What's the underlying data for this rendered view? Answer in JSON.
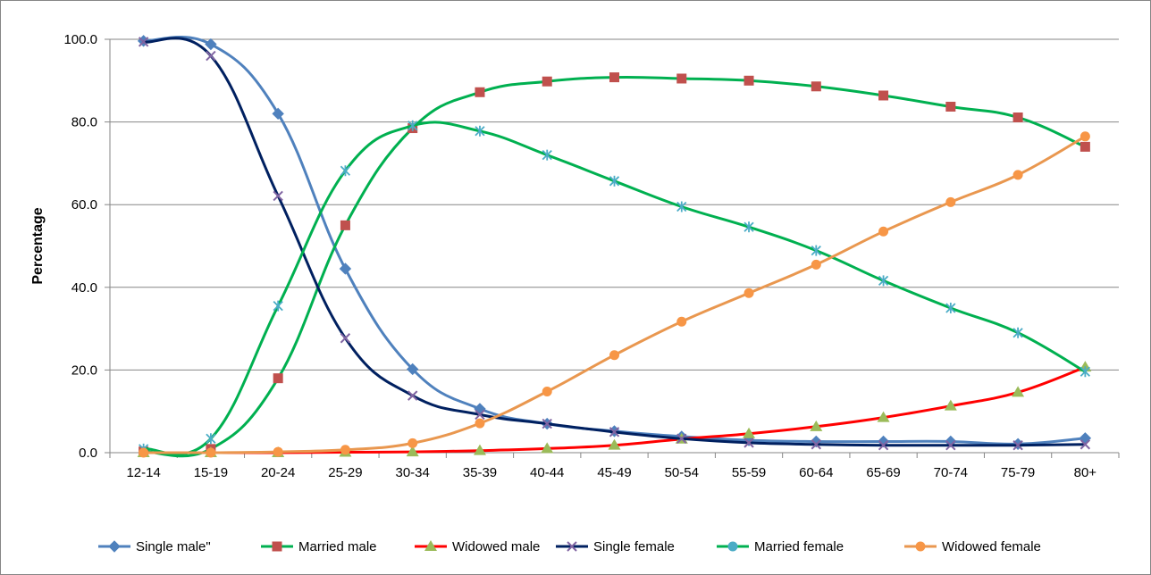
{
  "chart_data": {
    "type": "line",
    "title": "",
    "xlabel": "",
    "ylabel": "Percentage",
    "ylim": [
      0,
      100
    ],
    "yticks": [
      "0.0",
      "20.0",
      "40.0",
      "60.0",
      "80.0",
      "100.0"
    ],
    "grid": "horizontal",
    "legend_position": "bottom",
    "categories": [
      "12-14",
      "15-19",
      "20-24",
      "25-29",
      "30-34",
      "35-39",
      "40-44",
      "45-49",
      "50-54",
      "55-59",
      "60-64",
      "65-69",
      "70-74",
      "75-79",
      "80+"
    ],
    "series": [
      {
        "name": "Single male\"",
        "color": "#4F81BD",
        "marker": "diamond",
        "values": [
          99.6,
          98.8,
          82.0,
          44.5,
          20.2,
          10.6,
          7.0,
          5.2,
          3.9,
          3.0,
          2.7,
          2.7,
          2.7,
          2.1,
          3.5
        ]
      },
      {
        "name": "Married male",
        "color": "#00B050",
        "marker": "square",
        "marker_color": "#C0504D",
        "values": [
          0.3,
          0.9,
          18.0,
          55.0,
          78.5,
          87.2,
          89.8,
          90.8,
          90.5,
          90.0,
          88.6,
          86.4,
          83.7,
          81.1,
          74.0
        ]
      },
      {
        "name": "Widowed male",
        "color": "#FF0000",
        "marker": "triangle",
        "marker_color": "#9BBB59",
        "values": [
          0.0,
          0.0,
          0.0,
          0.1,
          0.2,
          0.5,
          1.0,
          1.8,
          3.3,
          4.6,
          6.3,
          8.5,
          11.3,
          14.6,
          20.7
        ]
      },
      {
        "name": "Single female",
        "color": "#002060",
        "marker": "x",
        "marker_color": "#8064A2",
        "values": [
          99.4,
          96.0,
          62.1,
          27.7,
          13.8,
          9.2,
          7.0,
          5.0,
          3.4,
          2.4,
          2.0,
          1.8,
          1.8,
          1.8,
          2.0
        ]
      },
      {
        "name": "Married female",
        "color": "#00B050",
        "marker": "asterisk",
        "marker_color": "#4BACC6",
        "legend_marker": "circle",
        "values": [
          0.9,
          3.4,
          35.5,
          68.2,
          79.1,
          77.8,
          72.0,
          65.7,
          59.5,
          54.6,
          48.9,
          41.6,
          35.0,
          29.0,
          19.6
        ]
      },
      {
        "name": "Widowed female",
        "color": "#E9974F",
        "marker": "circle",
        "marker_color": "#F79646",
        "values": [
          0.0,
          0.0,
          0.2,
          0.7,
          2.3,
          7.1,
          14.8,
          23.6,
          31.7,
          38.6,
          45.5,
          53.5,
          60.6,
          67.2,
          76.5
        ]
      }
    ]
  }
}
